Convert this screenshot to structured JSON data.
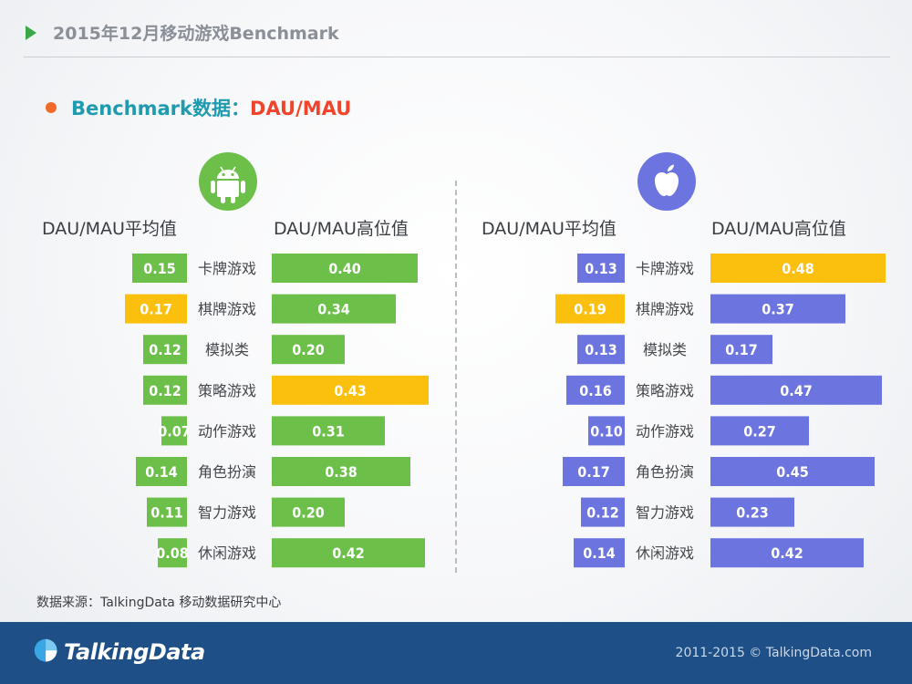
{
  "header": {
    "title": "2015年12月移动游戏Benchmark"
  },
  "subtitle": {
    "prefix": "Benchmark数据：",
    "metric": "DAU/MAU"
  },
  "columns": {
    "avg": "DAU/MAU平均值",
    "high": "DAU/MAU高位值"
  },
  "colors": {
    "android": "#6cc04a",
    "ios": "#6b74df",
    "highlight": "#fbbf0d"
  },
  "icons": {
    "play": "play-triangle-icon",
    "android": "android-robot-icon",
    "ios": "apple-icon",
    "logo": "talkingdata-logo-icon"
  },
  "chart_data": [
    {
      "type": "bar",
      "platform": "android",
      "categories": [
        "卡牌游戏",
        "棋牌游戏",
        "模拟类",
        "策略游戏",
        "动作游戏",
        "角色扮演",
        "智力游戏",
        "休闲游戏"
      ],
      "series": [
        {
          "name": "DAU/MAU平均值",
          "values": [
            0.15,
            0.17,
            0.12,
            0.12,
            0.07,
            0.14,
            0.11,
            0.08
          ],
          "labels": [
            "0.15",
            "0.17",
            "0.12",
            "0.12",
            "0.07",
            "0.14",
            "0.11",
            "0.08"
          ],
          "highlight_index": 1
        },
        {
          "name": "DAU/MAU高位值",
          "values": [
            0.4,
            0.34,
            0.2,
            0.43,
            0.31,
            0.38,
            0.2,
            0.42
          ],
          "labels": [
            "0.40",
            "0.34",
            "0.20",
            "0.43",
            "0.31",
            "0.38",
            "0.20",
            "0.42"
          ],
          "highlight_index": 3
        }
      ]
    },
    {
      "type": "bar",
      "platform": "ios",
      "categories": [
        "卡牌游戏",
        "棋牌游戏",
        "模拟类",
        "策略游戏",
        "动作游戏",
        "角色扮演",
        "智力游戏",
        "休闲游戏"
      ],
      "series": [
        {
          "name": "DAU/MAU平均值",
          "values": [
            0.13,
            0.19,
            0.13,
            0.16,
            0.1,
            0.17,
            0.12,
            0.14
          ],
          "labels": [
            "0.13",
            "0.19",
            "0.13",
            "0.16",
            "0.10",
            "0.17",
            "0.12",
            "0.14"
          ],
          "highlight_index": 1
        },
        {
          "name": "DAU/MAU高位值",
          "values": [
            0.48,
            0.37,
            0.17,
            0.47,
            0.27,
            0.45,
            0.23,
            0.42
          ],
          "labels": [
            "0.48",
            "0.37",
            "0.17",
            "0.47",
            "0.27",
            "0.45",
            "0.23",
            "0.42"
          ],
          "highlight_index": 0
        }
      ]
    }
  ],
  "source": "数据来源：TalkingData 移动数据研究中心",
  "footer": {
    "brand": "TalkingData",
    "copyright": "2011-2015 © TalkingData.com"
  }
}
